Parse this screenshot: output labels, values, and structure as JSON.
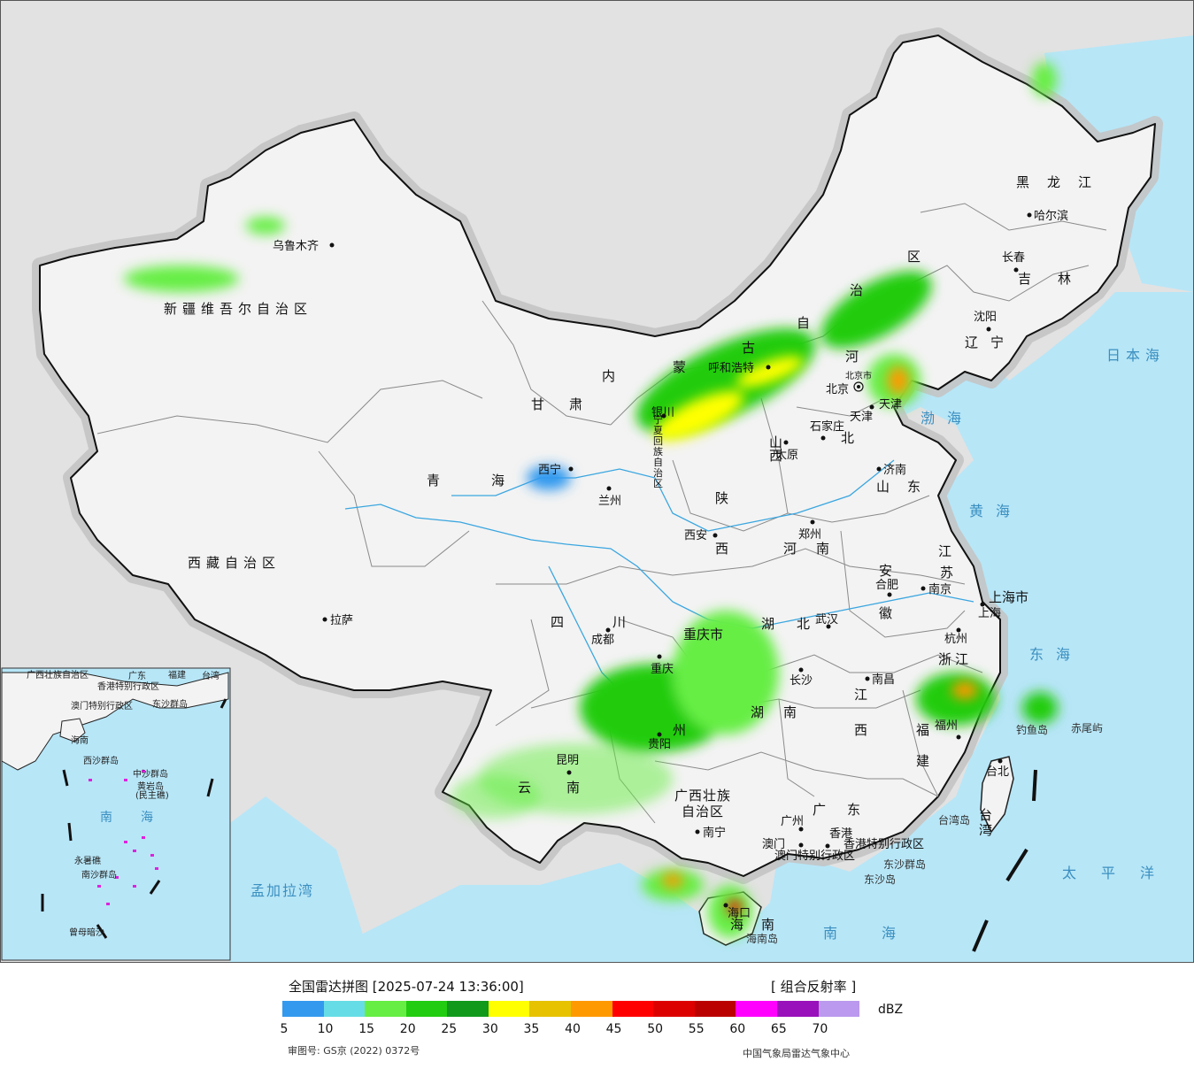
{
  "map": {
    "regions": {
      "xinjiang": "新疆维吾尔自治区",
      "tibet": "西藏自治区",
      "qinghai": "青海",
      "gansu": "甘肃",
      "neimenggu_1": "内",
      "neimenggu_2": "蒙",
      "neimenggu_3": "古",
      "neimenggu_4": "自",
      "neimenggu_5": "治",
      "neimenggu_6": "区",
      "heilongjiang": "黑龙江",
      "jilin": "吉林",
      "liaoning": "辽宁",
      "hebei_he": "河",
      "hebei_bei": "北",
      "shanxi": "山西",
      "shandong": "山东",
      "henan": "河南",
      "shaanxi_shan": "陕",
      "shaanxi_xi": "西",
      "sichuan": "四川",
      "hubei": "湖北",
      "hunan_hu": "湖",
      "hunan_nan": "南",
      "anhui_an": "安",
      "anhui_hui": "徽",
      "jiangsu_jiang": "江",
      "jiangsu_su": "苏",
      "zhejiang": "浙江",
      "jiangxi_jiang": "江",
      "jiangxi_xi": "西",
      "fujian_fu": "福",
      "fujian_jian": "建",
      "guizhou": "州",
      "yunnan_yun": "云",
      "yunnan_nan": "南",
      "guangxi_1": "广西壮族",
      "guangxi_2": "自治区",
      "guangdong": "广东",
      "hainan": "海南",
      "chongqing": "重庆市",
      "shanghai": "上海市",
      "ningxia_1": "宁",
      "ningxia_2": "夏",
      "ningxia_3": "回",
      "ningxia_4": "族",
      "ningxia_5": "自",
      "ningxia_6": "治",
      "ningxia_7": "区",
      "taiwan": "台湾",
      "hongkong_sar": "香港特别行政区",
      "macao_sar": "澳门特别行政区",
      "beijing": "北京",
      "tianjin": "天津"
    },
    "cities": {
      "urumqi": "乌鲁木齐",
      "lhasa": "拉萨",
      "xining": "西宁",
      "lanzhou": "兰州",
      "yinchuan": "银川",
      "hohhot": "呼和浩特",
      "harbin": "哈尔滨",
      "changchun": "长春",
      "shenyang": "沈阳",
      "beijing_city": "北京市",
      "tianjin_city": "天津",
      "shijiazhuang": "石家庄",
      "taiyuan": "太原",
      "jinan": "济南",
      "zhengzhou": "郑州",
      "xian": "西安",
      "chengdu": "成都",
      "chongqing_city": "重庆",
      "wuhan": "武汉",
      "hefei": "合肥",
      "nanjing": "南京",
      "shanghai_city": "上海",
      "hangzhou": "杭州",
      "nanchang": "南昌",
      "changsha": "长沙",
      "fuzhou": "福州",
      "guiyang": "贵阳",
      "kunming": "昆明",
      "nanning": "南宁",
      "guangzhou": "广州",
      "hongkong": "香港",
      "macao": "澳门",
      "haikou": "海口",
      "taipei": "台北"
    },
    "seas": {
      "bohai": "渤海",
      "yellow_sea": "黄海",
      "east_sea": "东海",
      "south_sea": "南海",
      "sea_of_japan": "日本海",
      "pacific": "太平洋",
      "bay_of_bengal": "孟加拉湾",
      "south_sea_inset": "南海"
    },
    "islands": {
      "diaoyu": "钓鱼岛",
      "chiwei": "赤尾屿",
      "taiwan_island": "台湾岛",
      "dongsha_qundao": "东沙群岛",
      "dongsha_dao": "东沙岛",
      "hainan_dao": "海南岛",
      "inset_xisha": "西沙群岛",
      "inset_zhongsha": "中沙群岛",
      "inset_huangyan": "黄岩岛",
      "inset_huangyan2": "(民主礁)",
      "inset_nansha": "南沙群岛",
      "inset_yongshu": "永暑礁",
      "inset_zengmu": "曾母暗沙",
      "inset_dongsha": "东沙群岛",
      "inset_guangxi": "广西壮族自治区",
      "inset_guangdong": "广东",
      "inset_fujian": "福建",
      "inset_taiwan": "台湾",
      "inset_hk": "香港特别行政区",
      "inset_macao": "澳门特别行政区",
      "inset_hainan": "海南"
    },
    "colors": {
      "ocean": "#b7e6f7",
      "land": "#f3f3f3",
      "outside": "#e2e2e2",
      "border": "#111111",
      "province_border": "#8a8a8a",
      "river": "#3aa6e0",
      "halo": "#c2c2c2"
    }
  },
  "legend": {
    "title": "全国雷达拼图 [2025-07-24 13:36:00]",
    "product": "[ 组合反射率 ]",
    "unit": "dBZ",
    "approval": "审图号: GS京 (2022) 0372号",
    "source": "中国气象局雷达气象中心",
    "colors": [
      "#3399ee",
      "#66dde6",
      "#66ee44",
      "#22cc11",
      "#11991c",
      "#ffff00",
      "#e6c200",
      "#ff9900",
      "#ff0000",
      "#dd0000",
      "#bb0000",
      "#ff00ff",
      "#9911bb",
      "#bb99ee"
    ],
    "ticks": [
      "5",
      "10",
      "15",
      "20",
      "25",
      "30",
      "35",
      "40",
      "45",
      "50",
      "55",
      "60",
      "65",
      "70"
    ]
  }
}
